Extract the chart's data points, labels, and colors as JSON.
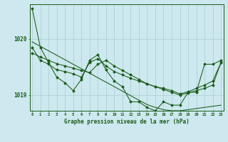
{
  "background_color": "#cde8ee",
  "grid_color": "#a8cdd4",
  "line_color": "#1a5c1a",
  "xlabel": "Graphe pression niveau de la mer (hPa)",
  "x_ticks": [
    0,
    1,
    2,
    3,
    4,
    5,
    6,
    7,
    8,
    9,
    10,
    11,
    12,
    13,
    14,
    15,
    16,
    17,
    18,
    19,
    20,
    21,
    22,
    23
  ],
  "ylim": [
    1018.72,
    1020.62
  ],
  "yticks": [
    1019.0,
    1020.0
  ],
  "series": {
    "main": [
      1020.55,
      1019.85,
      1019.58,
      1019.32,
      1019.22,
      1019.08,
      1019.28,
      1019.62,
      1019.72,
      1019.45,
      1019.25,
      1019.15,
      1018.88,
      1018.88,
      1018.78,
      1018.72,
      1018.88,
      1018.82,
      1018.82,
      1019.05,
      1019.05,
      1019.55,
      1019.55,
      1019.62
    ],
    "smooth1": [
      1019.85,
      1019.62,
      1019.55,
      1019.45,
      1019.42,
      1019.38,
      1019.32,
      1019.58,
      1019.65,
      1019.52,
      1019.42,
      1019.36,
      1019.3,
      1019.25,
      1019.2,
      1019.15,
      1019.12,
      1019.08,
      1019.02,
      1019.06,
      1019.12,
      1019.18,
      1019.25,
      1019.58
    ],
    "trend": [
      1019.95,
      1019.87,
      1019.79,
      1019.71,
      1019.63,
      1019.55,
      1019.47,
      1019.39,
      1019.31,
      1019.23,
      1019.15,
      1019.07,
      1018.99,
      1018.91,
      1018.83,
      1018.78,
      1018.74,
      1018.72,
      1018.72,
      1018.74,
      1018.76,
      1018.78,
      1018.8,
      1018.82
    ],
    "smooth2": [
      1019.75,
      1019.68,
      1019.62,
      1019.56,
      1019.52,
      1019.48,
      1019.44,
      1019.4,
      1019.55,
      1019.62,
      1019.52,
      1019.44,
      1019.36,
      1019.28,
      1019.2,
      1019.15,
      1019.1,
      1019.05,
      1019.0,
      1019.04,
      1019.08,
      1019.12,
      1019.18,
      1019.58
    ]
  }
}
